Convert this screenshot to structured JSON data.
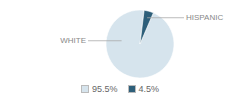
{
  "chart_data": {
    "type": "pie",
    "categories": [
      "WHITE",
      "HISPANIC"
    ],
    "values": [
      95.5,
      4.5
    ],
    "value_labels": [
      "95.5%",
      "4.5%"
    ],
    "colors": [
      "#d6e4ed",
      "#2e5f7a"
    ],
    "legend": "bottom"
  }
}
